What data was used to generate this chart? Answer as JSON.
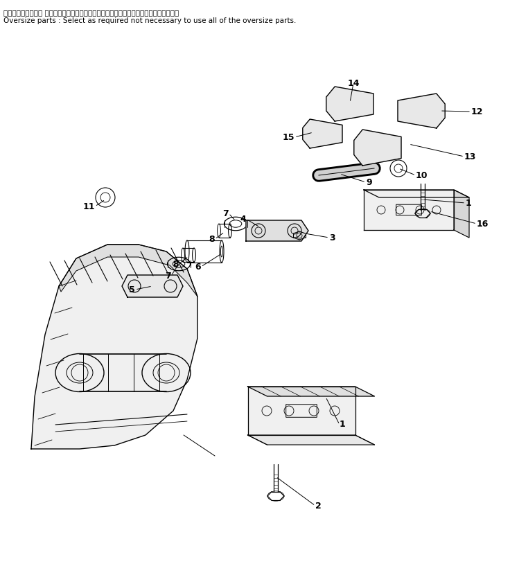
{
  "bg_color": "#ffffff",
  "text_color": "#000000",
  "line_color": "#000000",
  "header_line1": "オーバサイズ部品： 全点オーバサイズ部品を使用する必要はなく任意に選定して下さい。",
  "header_line2": "Oversize parts : Select as required not necessary to use all of the oversize parts."
}
